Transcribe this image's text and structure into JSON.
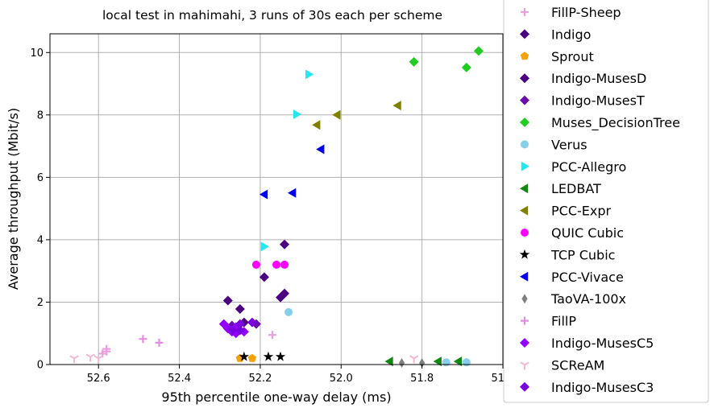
{
  "chart_data": {
    "type": "scatter",
    "title": "local test in mahimahi, 3 runs of 30s each per scheme",
    "xlabel": "95th percentile one-way delay (ms)",
    "ylabel": "Average throughput (Mbit/s)",
    "x_inverted": true,
    "xlim": [
      52.72,
      51.6
    ],
    "ylim": [
      0,
      10.6
    ],
    "x_ticks": [
      52.6,
      52.4,
      52.2,
      52.0,
      51.8,
      51.6
    ],
    "x_tick_labels": [
      "52.6",
      "52.4",
      "52.2",
      "52.0",
      "51.8",
      "51.6"
    ],
    "y_ticks": [
      0,
      2,
      4,
      6,
      8,
      10
    ],
    "y_tick_labels": [
      "0",
      "2",
      "4",
      "6",
      "8",
      "10"
    ],
    "grid": true,
    "legend_placement": "outside-right",
    "series": [
      {
        "name": "FillP-Sheep",
        "marker": "plus",
        "color": "#e89fe0",
        "points": [
          [
            52.59,
            0.35
          ],
          [
            52.58,
            0.5
          ],
          [
            52.58,
            0.42
          ],
          [
            52.17,
            0.95
          ]
        ]
      },
      {
        "name": "Indigo",
        "marker": "diamond",
        "color": "#4b0082",
        "points": [
          [
            52.25,
            1.78
          ],
          [
            52.19,
            2.8
          ],
          [
            52.15,
            2.15
          ],
          [
            52.14,
            2.28
          ],
          [
            52.14,
            3.85
          ]
        ]
      },
      {
        "name": "Sprout",
        "marker": "pentagon",
        "color": "#f5a20a",
        "points": [
          [
            52.25,
            0.2
          ],
          [
            52.22,
            0.2
          ]
        ]
      },
      {
        "name": "Indigo-MusesD",
        "marker": "diamond",
        "color": "#4b0082",
        "points": [
          [
            52.28,
            2.05
          ],
          [
            52.24,
            1.35
          ]
        ]
      },
      {
        "name": "Indigo-MusesT",
        "marker": "diamond",
        "color": "#6a0dad",
        "points": [
          [
            52.27,
            1.25
          ],
          [
            52.21,
            1.3
          ]
        ]
      },
      {
        "name": "Muses_DecisionTree",
        "marker": "diamond",
        "color": "#22cc22",
        "points": [
          [
            51.82,
            9.7
          ],
          [
            51.69,
            9.52
          ],
          [
            51.66,
            10.05
          ]
        ]
      },
      {
        "name": "Verus",
        "marker": "circle",
        "color": "#87ceeb",
        "points": [
          [
            52.13,
            1.68
          ],
          [
            51.74,
            0.07
          ],
          [
            51.69,
            0.07
          ]
        ]
      },
      {
        "name": "PCC-Allegro",
        "marker": "triangle-right",
        "color": "#22e8f0",
        "points": [
          [
            52.19,
            3.78
          ],
          [
            52.11,
            8.02
          ],
          [
            52.08,
            9.3
          ]
        ]
      },
      {
        "name": "LEDBAT",
        "marker": "triangle-left",
        "color": "#118811",
        "points": [
          [
            51.88,
            0.1
          ],
          [
            51.76,
            0.1
          ],
          [
            51.71,
            0.1
          ]
        ]
      },
      {
        "name": "PCC-Expr",
        "marker": "triangle-left",
        "color": "#808000",
        "points": [
          [
            52.06,
            7.68
          ],
          [
            52.01,
            8.0
          ],
          [
            51.86,
            8.3
          ]
        ]
      },
      {
        "name": "QUIC Cubic",
        "marker": "circle",
        "color": "#ff00ff",
        "points": [
          [
            52.21,
            3.2
          ],
          [
            52.16,
            3.2
          ],
          [
            52.14,
            3.2
          ]
        ]
      },
      {
        "name": "TCP Cubic",
        "marker": "star",
        "color": "#000000",
        "points": [
          [
            52.24,
            0.25
          ],
          [
            52.18,
            0.25
          ],
          [
            52.15,
            0.25
          ]
        ]
      },
      {
        "name": "PCC-Vivace",
        "marker": "triangle-left",
        "color": "#0000ee",
        "points": [
          [
            52.19,
            5.45
          ],
          [
            52.12,
            5.5
          ],
          [
            52.05,
            6.9
          ]
        ]
      },
      {
        "name": "TaoVA-100x",
        "marker": "thin-diamond",
        "color": "#808080",
        "points": [
          [
            51.85,
            0.05
          ],
          [
            51.8,
            0.05
          ]
        ]
      },
      {
        "name": "FillP",
        "marker": "plus",
        "color": "#e58ee0",
        "points": [
          [
            52.49,
            0.82
          ],
          [
            52.45,
            0.7
          ]
        ]
      },
      {
        "name": "Indigo-MusesC5",
        "marker": "diamond",
        "color": "#9400ff",
        "points": [
          [
            52.29,
            1.3
          ],
          [
            52.28,
            1.15
          ],
          [
            52.27,
            1.05
          ],
          [
            52.26,
            1.2
          ],
          [
            52.24,
            1.05
          ],
          [
            52.26,
            1.0
          ]
        ]
      },
      {
        "name": "SCReAM",
        "marker": "tri-down",
        "color": "#f4b6d2",
        "points": [
          [
            52.66,
            0.2
          ],
          [
            52.62,
            0.25
          ],
          [
            52.6,
            0.2
          ],
          [
            51.82,
            0.2
          ]
        ]
      },
      {
        "name": "Indigo-MusesC3",
        "marker": "diamond",
        "color": "#7b00e0",
        "points": [
          [
            52.27,
            1.1
          ],
          [
            52.25,
            1.3
          ],
          [
            52.22,
            1.35
          ],
          [
            52.25,
            1.1
          ]
        ]
      }
    ]
  }
}
